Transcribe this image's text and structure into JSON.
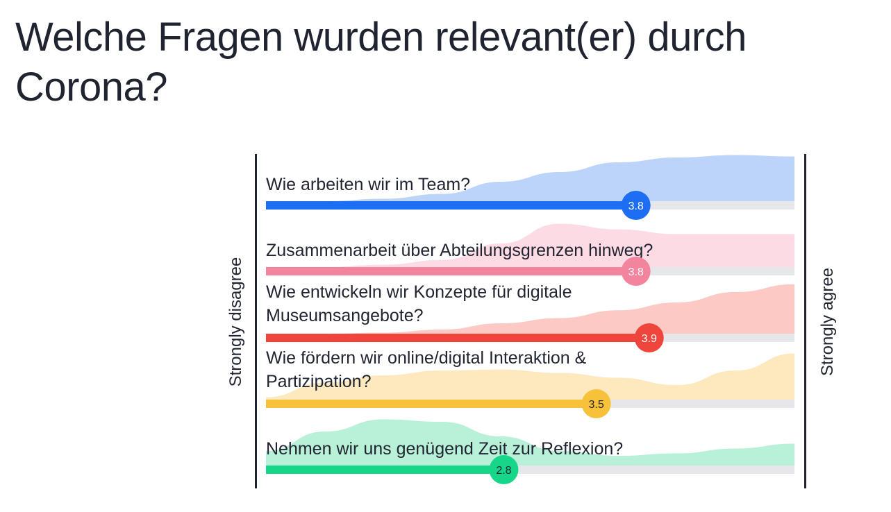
{
  "header": {
    "title": "Welche Fragen wurden relevant(er) durch Corona?"
  },
  "scale": {
    "min_label": "Strongly disagree",
    "max_label": "Strongly agree"
  },
  "chart_data": {
    "type": "bar",
    "title": "Welche Fragen wurden relevant(er) durch Corona?",
    "scale_min_label": "Strongly disagree",
    "scale_max_label": "Strongly agree",
    "xlim": [
      1,
      5
    ],
    "categories": [
      [
        "Wie arbeiten wir im Team?"
      ],
      [
        "Zusammenarbeit über Abteilungsgrenzen hinweg?"
      ],
      [
        "Wie entwickeln wir Konzepte für digitale",
        "Museumsangebote?"
      ],
      [
        "Wie fördern wir online/digital Interaktion &",
        "Partizipation?"
      ],
      [
        "Nehmen wir uns genügend Zeit zur Reflexion?"
      ]
    ],
    "values": [
      3.8,
      3.8,
      3.9,
      3.5,
      2.8
    ],
    "value_labels": [
      "3.8",
      "3.8",
      "3.9",
      "3.5",
      "2.8"
    ],
    "bar_colors": [
      "#1d6ef2",
      "#f2849e",
      "#f0453c",
      "#f7c23a",
      "#17d68a"
    ],
    "distribution_colors": [
      "#bcd3fa",
      "#fddbe4",
      "#fcc9c5",
      "#fde9bd",
      "#b9f0d8"
    ],
    "value_text_colors": [
      "#ffffff",
      "#ffffff",
      "#ffffff",
      "#1f2430",
      "#1f2430"
    ],
    "distributions": [
      [
        0.0,
        0.0,
        0.05,
        0.15,
        0.4,
        0.6,
        0.8,
        0.9,
        0.95,
        0.92
      ],
      [
        0.0,
        0.0,
        0.05,
        0.15,
        0.5,
        0.92,
        0.8,
        0.7,
        0.7,
        0.7
      ],
      [
        0.0,
        0.0,
        0.02,
        0.08,
        0.2,
        0.3,
        0.45,
        0.6,
        0.8,
        0.95
      ],
      [
        0.05,
        0.35,
        0.5,
        0.6,
        0.62,
        0.55,
        0.45,
        0.3,
        0.6,
        0.95
      ],
      [
        0.3,
        0.7,
        0.95,
        0.9,
        0.6,
        0.3,
        0.2,
        0.25,
        0.35,
        0.45
      ]
    ]
  }
}
